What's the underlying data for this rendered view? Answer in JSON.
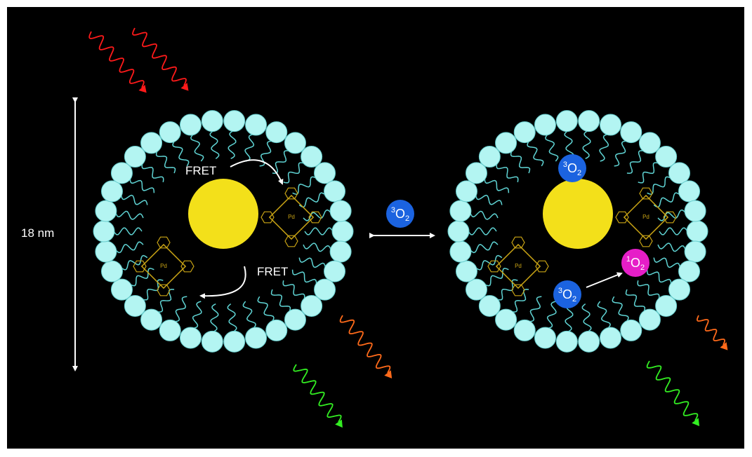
{
  "scale_label": "18 nm",
  "fret_labels": [
    "FRET",
    "FRET"
  ],
  "porphyrin_metal": "Pd",
  "oxygen_labels": [
    {
      "pre": "3",
      "main": "O",
      "post": "2"
    },
    {
      "pre": "3",
      "main": "O",
      "post": "2"
    },
    {
      "pre": "3",
      "main": "O",
      "post": "2"
    },
    {
      "pre": "1",
      "main": "O",
      "post": "2"
    }
  ]
}
